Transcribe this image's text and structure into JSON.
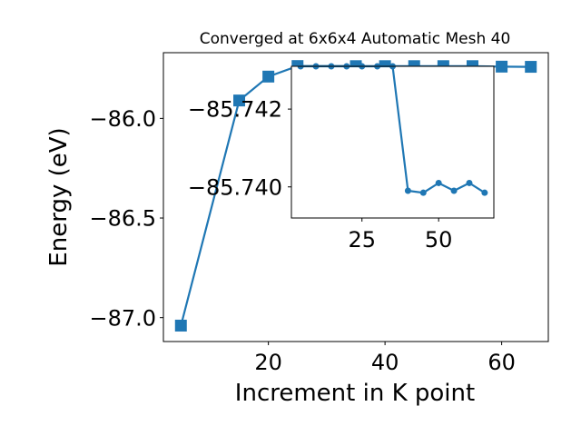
{
  "chart_data": [
    {
      "type": "line",
      "title": "Converged at 6x6x4 Automatic Mesh 40",
      "xlabel": "Increment in K point",
      "ylabel": "Energy (eV)",
      "xlim": [
        2,
        68
      ],
      "ylim": [
        -87.12,
        -85.67
      ],
      "xticks": [
        20,
        40,
        60
      ],
      "yticks": [
        -87.0,
        -86.5,
        -86.0
      ],
      "ytick_labels": [
        "−87.0",
        "−86.5",
        "−86.0"
      ],
      "grid": false,
      "marker": "square",
      "color": "#1f77b4",
      "series": [
        {
          "x": [
            5,
            15,
            20,
            25,
            35,
            40,
            45,
            50,
            55,
            60,
            65
          ],
          "y": [
            -87.04,
            -85.91,
            -85.79,
            -85.737,
            -85.7375,
            -85.7375,
            -85.7375,
            -85.7375,
            -85.7375,
            -85.74,
            -85.741
          ]
        }
      ]
    },
    {
      "type": "line",
      "xlim": [
        2,
        68
      ],
      "ylim": [
        -85.7392,
        -85.7431
      ],
      "xticks": [
        25,
        50
      ],
      "yticks": [
        -85.742,
        -85.74
      ],
      "ytick_labels": [
        "−85.742",
        "−85.740"
      ],
      "grid": false,
      "marker": "circle",
      "color": "#1f77b4",
      "series": [
        {
          "x": [
            5,
            10,
            15,
            20,
            25,
            30,
            35,
            40,
            45,
            50,
            55,
            60,
            65
          ],
          "y": [
            -85.7431,
            -85.7431,
            -85.7431,
            -85.7431,
            -85.7431,
            -85.7431,
            -85.7431,
            -85.7399,
            -85.73985,
            -85.7401,
            -85.7399,
            -85.7401,
            -85.73985
          ]
        }
      ]
    }
  ]
}
